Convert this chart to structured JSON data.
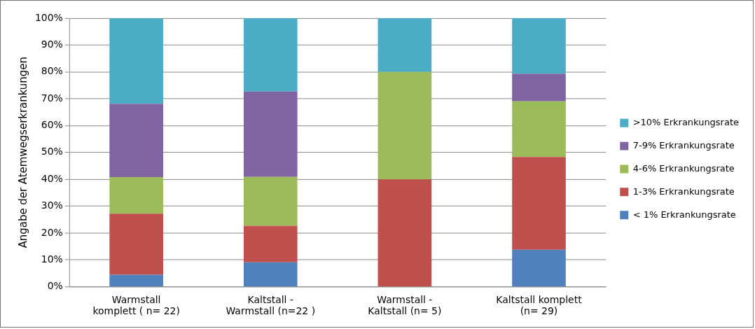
{
  "chart_data": {
    "type": "bar",
    "stacked": true,
    "ylabel": "Angabe der Atemwegserkrankungen",
    "categories": [
      "Warmstall\nkomplett ( n= 22)",
      "Kaltstall -\nWarmstall (n=22 )",
      "Warmstall -\nKaltstall (n= 5)",
      "Kaltstall komplett\n(n= 29)"
    ],
    "series": [
      {
        "name": "< 1% Erkrankungsrate",
        "color": "#4f81bd",
        "values": [
          4.5,
          9.1,
          0,
          13.8
        ]
      },
      {
        "name": "1-3% Erkrankungsrate",
        "color": "#c0504d",
        "values": [
          22.7,
          13.6,
          40,
          34.5
        ]
      },
      {
        "name": "4-6% Erkrankungsrate",
        "color": "#9bbb59",
        "values": [
          13.6,
          18.2,
          40,
          20.7
        ]
      },
      {
        "name": "7-9% Erkrankungsrate",
        "color": "#8064a2",
        "values": [
          27.3,
          31.8,
          0,
          10.3
        ]
      },
      {
        "name": ">10% Erkrankungsrate",
        "color": "#4bacc6",
        "values": [
          31.8,
          27.3,
          20,
          20.7
        ]
      }
    ],
    "ylim": [
      0,
      100
    ],
    "yticks": [
      {
        "value": 0,
        "label": "0%"
      },
      {
        "value": 10,
        "label": "10%"
      },
      {
        "value": 20,
        "label": "20%"
      },
      {
        "value": 30,
        "label": "30%"
      },
      {
        "value": 40,
        "label": "40%"
      },
      {
        "value": 50,
        "label": "50%"
      },
      {
        "value": 60,
        "label": "60%"
      },
      {
        "value": 70,
        "label": "70%"
      },
      {
        "value": 80,
        "label": "80%"
      },
      {
        "value": 90,
        "label": "90%"
      },
      {
        "value": 100,
        "label": "100%"
      }
    ],
    "grid": "y",
    "legend": "right"
  }
}
